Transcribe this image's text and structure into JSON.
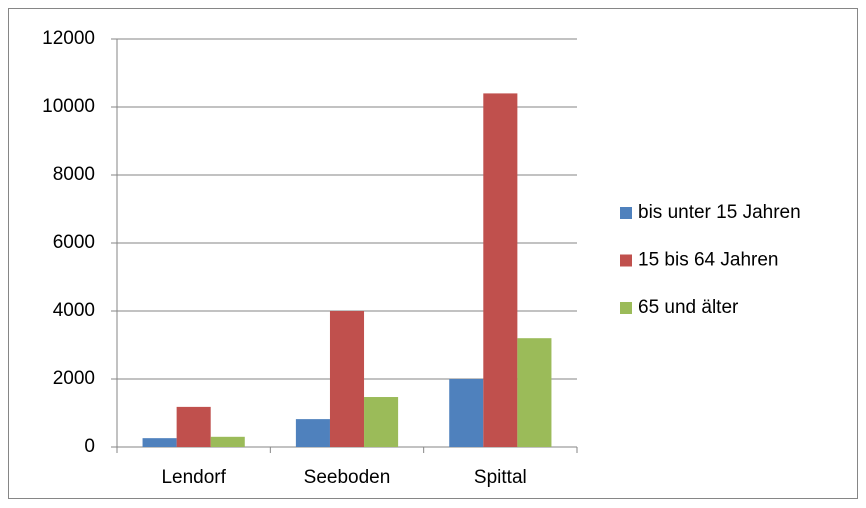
{
  "chart_data": {
    "type": "bar",
    "categories": [
      "Lendorf",
      "Seeboden",
      "Spittal"
    ],
    "series": [
      {
        "name": "bis unter 15 Jahren",
        "color": "#4f81bd",
        "values": [
          260,
          820,
          2000
        ]
      },
      {
        "name": "15 bis 64 Jahren",
        "color": "#c0504d",
        "values": [
          1180,
          4000,
          10400
        ]
      },
      {
        "name": "65 und älter",
        "color": "#9bbb59",
        "values": [
          300,
          1470,
          3200
        ]
      }
    ],
    "ylim": [
      0,
      12000
    ],
    "yticks": [
      0,
      2000,
      4000,
      6000,
      8000,
      10000,
      12000
    ],
    "grid": true,
    "legend": "right"
  }
}
